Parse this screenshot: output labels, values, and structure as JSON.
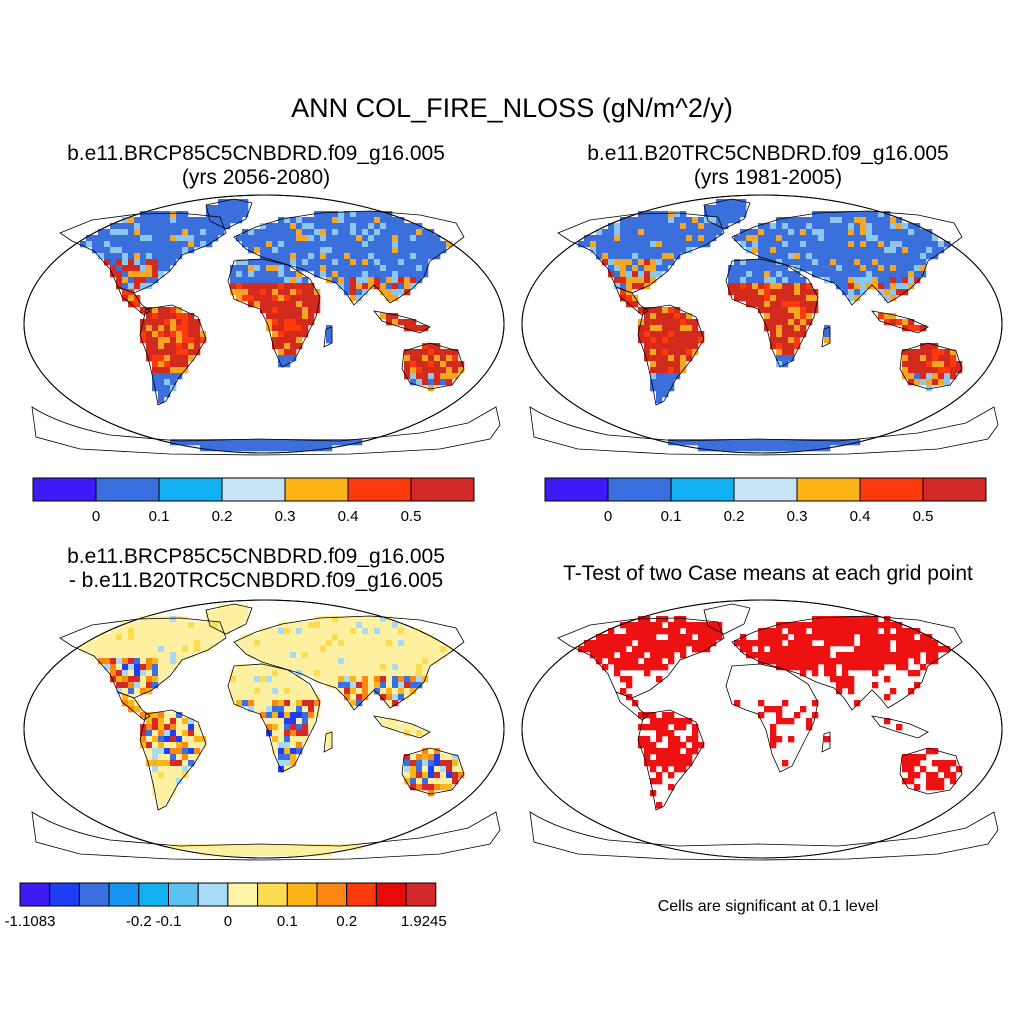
{
  "main_title": "ANN COL_FIRE_NLOSS (gN/m^2/y)",
  "colors": {
    "ocean": "#ffffff",
    "low_blue": "#3b6fdb",
    "light_blue": "#8ec7ee",
    "mid_orange": "#f5a623",
    "high_red": "#d22a1d",
    "diff_base": "#fdf0a0",
    "sig_red": "#ee1111"
  },
  "panels": [
    {
      "id": "case1",
      "title_line1": "b.e11.BRCP85C5CNBDRD.f09_g16.005",
      "title_line2": "(yrs 2056-2080)",
      "colorbar": {
        "colors": [
          "#3c1bf5",
          "#3a6fe0",
          "#12b0f2",
          "#c8e5f8",
          "#fcb416",
          "#fc3a0c",
          "#d22a29"
        ],
        "tick_labels": [
          "0",
          "0.1",
          "0.2",
          "0.3",
          "0.4",
          "0.5"
        ]
      }
    },
    {
      "id": "case2",
      "title_line1": "b.e11.B20TRC5CNBDRD.f09_g16.005",
      "title_line2": "(yrs 1981-2005)",
      "colorbar": {
        "colors": [
          "#3c1bf5",
          "#3a6fe0",
          "#12b0f2",
          "#c8e5f8",
          "#fcb416",
          "#fc3a0c",
          "#d22a29"
        ],
        "tick_labels": [
          "0",
          "0.1",
          "0.2",
          "0.3",
          "0.4",
          "0.5"
        ]
      }
    },
    {
      "id": "difference",
      "title_line1": "b.e11.BRCP85C5CNBDRD.f09_g16.005",
      "title_line2": "- b.e11.B20TRC5CNBDRD.f09_g16.005",
      "colorbar": {
        "colors": [
          "#3c1bf5",
          "#1e3ef4",
          "#3a6fe0",
          "#1696f2",
          "#12b0f2",
          "#5dc2f1",
          "#a8daf5",
          "#fff5a8",
          "#fddc52",
          "#fcb416",
          "#fc8712",
          "#fc3a0c",
          "#e80a0a",
          "#d22a29"
        ],
        "tick_labels": [
          "-1.1083",
          "-0.2",
          "-0.1",
          "0",
          "0.1",
          "0.2",
          "1.9245"
        ]
      }
    },
    {
      "id": "ttest",
      "title_line1": "T-Test of two Case means at each grid point",
      "note": "Cells are significant at 0.1 level"
    }
  ]
}
